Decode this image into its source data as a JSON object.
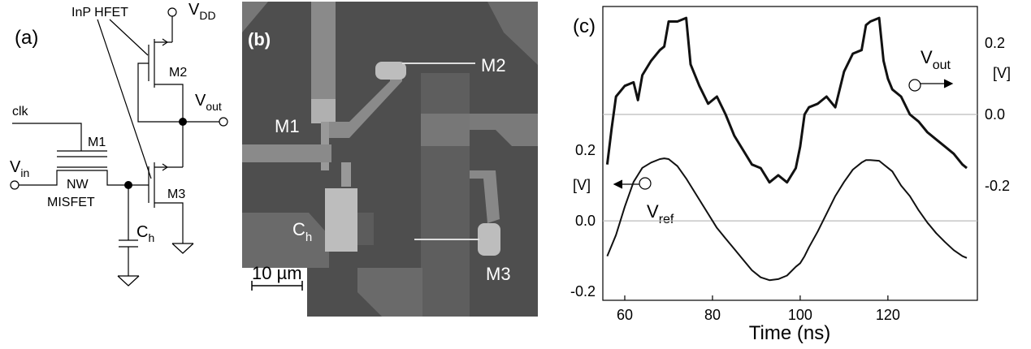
{
  "panel_a": {
    "label": "(a)",
    "device_label": "InP HFET",
    "vdd": {
      "main": "V",
      "sub": "DD"
    },
    "m2": "M2",
    "vout": {
      "main": "V",
      "sub": "out"
    },
    "clk": "clk",
    "m1": "M1",
    "vin": {
      "main": "V",
      "sub": "in"
    },
    "nw": "NW",
    "misfet": "MISFET",
    "m3": "M3",
    "ch": {
      "main": "C",
      "sub": "h"
    }
  },
  "panel_b": {
    "label": "(b)",
    "m2": "M2",
    "m1": "M1",
    "ch": {
      "main": "C",
      "sub": "h"
    },
    "m3": "M3",
    "scale_bar": "10 µm"
  },
  "chart_data": {
    "type": "line",
    "label": "(c)",
    "xlabel": "Time (ns)",
    "x": [
      56,
      57,
      58,
      60,
      62,
      63,
      64,
      66,
      68,
      69,
      70,
      72,
      74,
      75,
      77,
      79,
      81,
      83,
      85,
      87,
      89,
      91,
      93,
      95,
      97,
      99,
      100,
      101,
      102,
      104,
      106,
      108,
      110,
      112,
      114,
      115,
      116,
      118,
      119,
      120,
      121,
      123,
      125,
      127,
      129,
      131,
      133,
      135,
      137,
      138
    ],
    "xlim": [
      55,
      140.4
    ],
    "xticks": [
      60,
      80,
      100,
      120
    ],
    "ylim": [
      -0.225,
      0.607
    ],
    "yticks": [
      -0.2,
      {
        "value": 0,
        "label": "0.0"
      },
      0.2
    ],
    "y2lim": [
      -0.52,
      0.302
    ],
    "y2ticks": [
      -0.2,
      {
        "value": 0,
        "label": "0.0"
      },
      0.2
    ],
    "y_unit": "[V]",
    "y2_unit": "[V]",
    "zero_lines": true,
    "vout_label": {
      "main": "V",
      "sub": "out"
    },
    "vref_label": {
      "main": "V",
      "sub": "ref"
    },
    "series": [
      {
        "color": "#111111",
        "axis": "y2",
        "values": [
          -0.14,
          -0.04,
          0.05,
          0.08,
          0.09,
          0.04,
          0.11,
          0.15,
          0.18,
          0.19,
          0.26,
          0.26,
          0.27,
          0.14,
          0.08,
          0.03,
          0.05,
          0,
          -0.06,
          -0.1,
          -0.14,
          -0.15,
          -0.19,
          -0.17,
          -0.19,
          -0.15,
          -0.09,
          0,
          0.02,
          0.03,
          0.05,
          0.02,
          0.12,
          0.17,
          0.18,
          0.25,
          0.26,
          0.27,
          0.15,
          0.1,
          0.07,
          0.05,
          0,
          -0.02,
          -0.05,
          -0.07,
          -0.09,
          -0.11,
          -0.14,
          -0.15
        ]
      },
      {
        "color": "#111111",
        "values": [
          -0.1,
          -0.07,
          -0.04,
          0.04,
          0.11,
          0.13,
          0.15,
          0.165,
          0.175,
          0.177,
          0.175,
          0.155,
          0.12,
          0.1,
          0.06,
          0.02,
          -0.02,
          -0.05,
          -0.08,
          -0.11,
          -0.14,
          -0.16,
          -0.168,
          -0.165,
          -0.155,
          -0.13,
          -0.12,
          -0.1,
          -0.075,
          -0.03,
          0.02,
          0.07,
          0.11,
          0.145,
          0.165,
          0.172,
          0.172,
          0.17,
          0.16,
          0.15,
          0.14,
          0.1,
          0.07,
          0.03,
          -0.005,
          -0.035,
          -0.06,
          -0.083,
          -0.1,
          -0.105
        ]
      }
    ]
  }
}
